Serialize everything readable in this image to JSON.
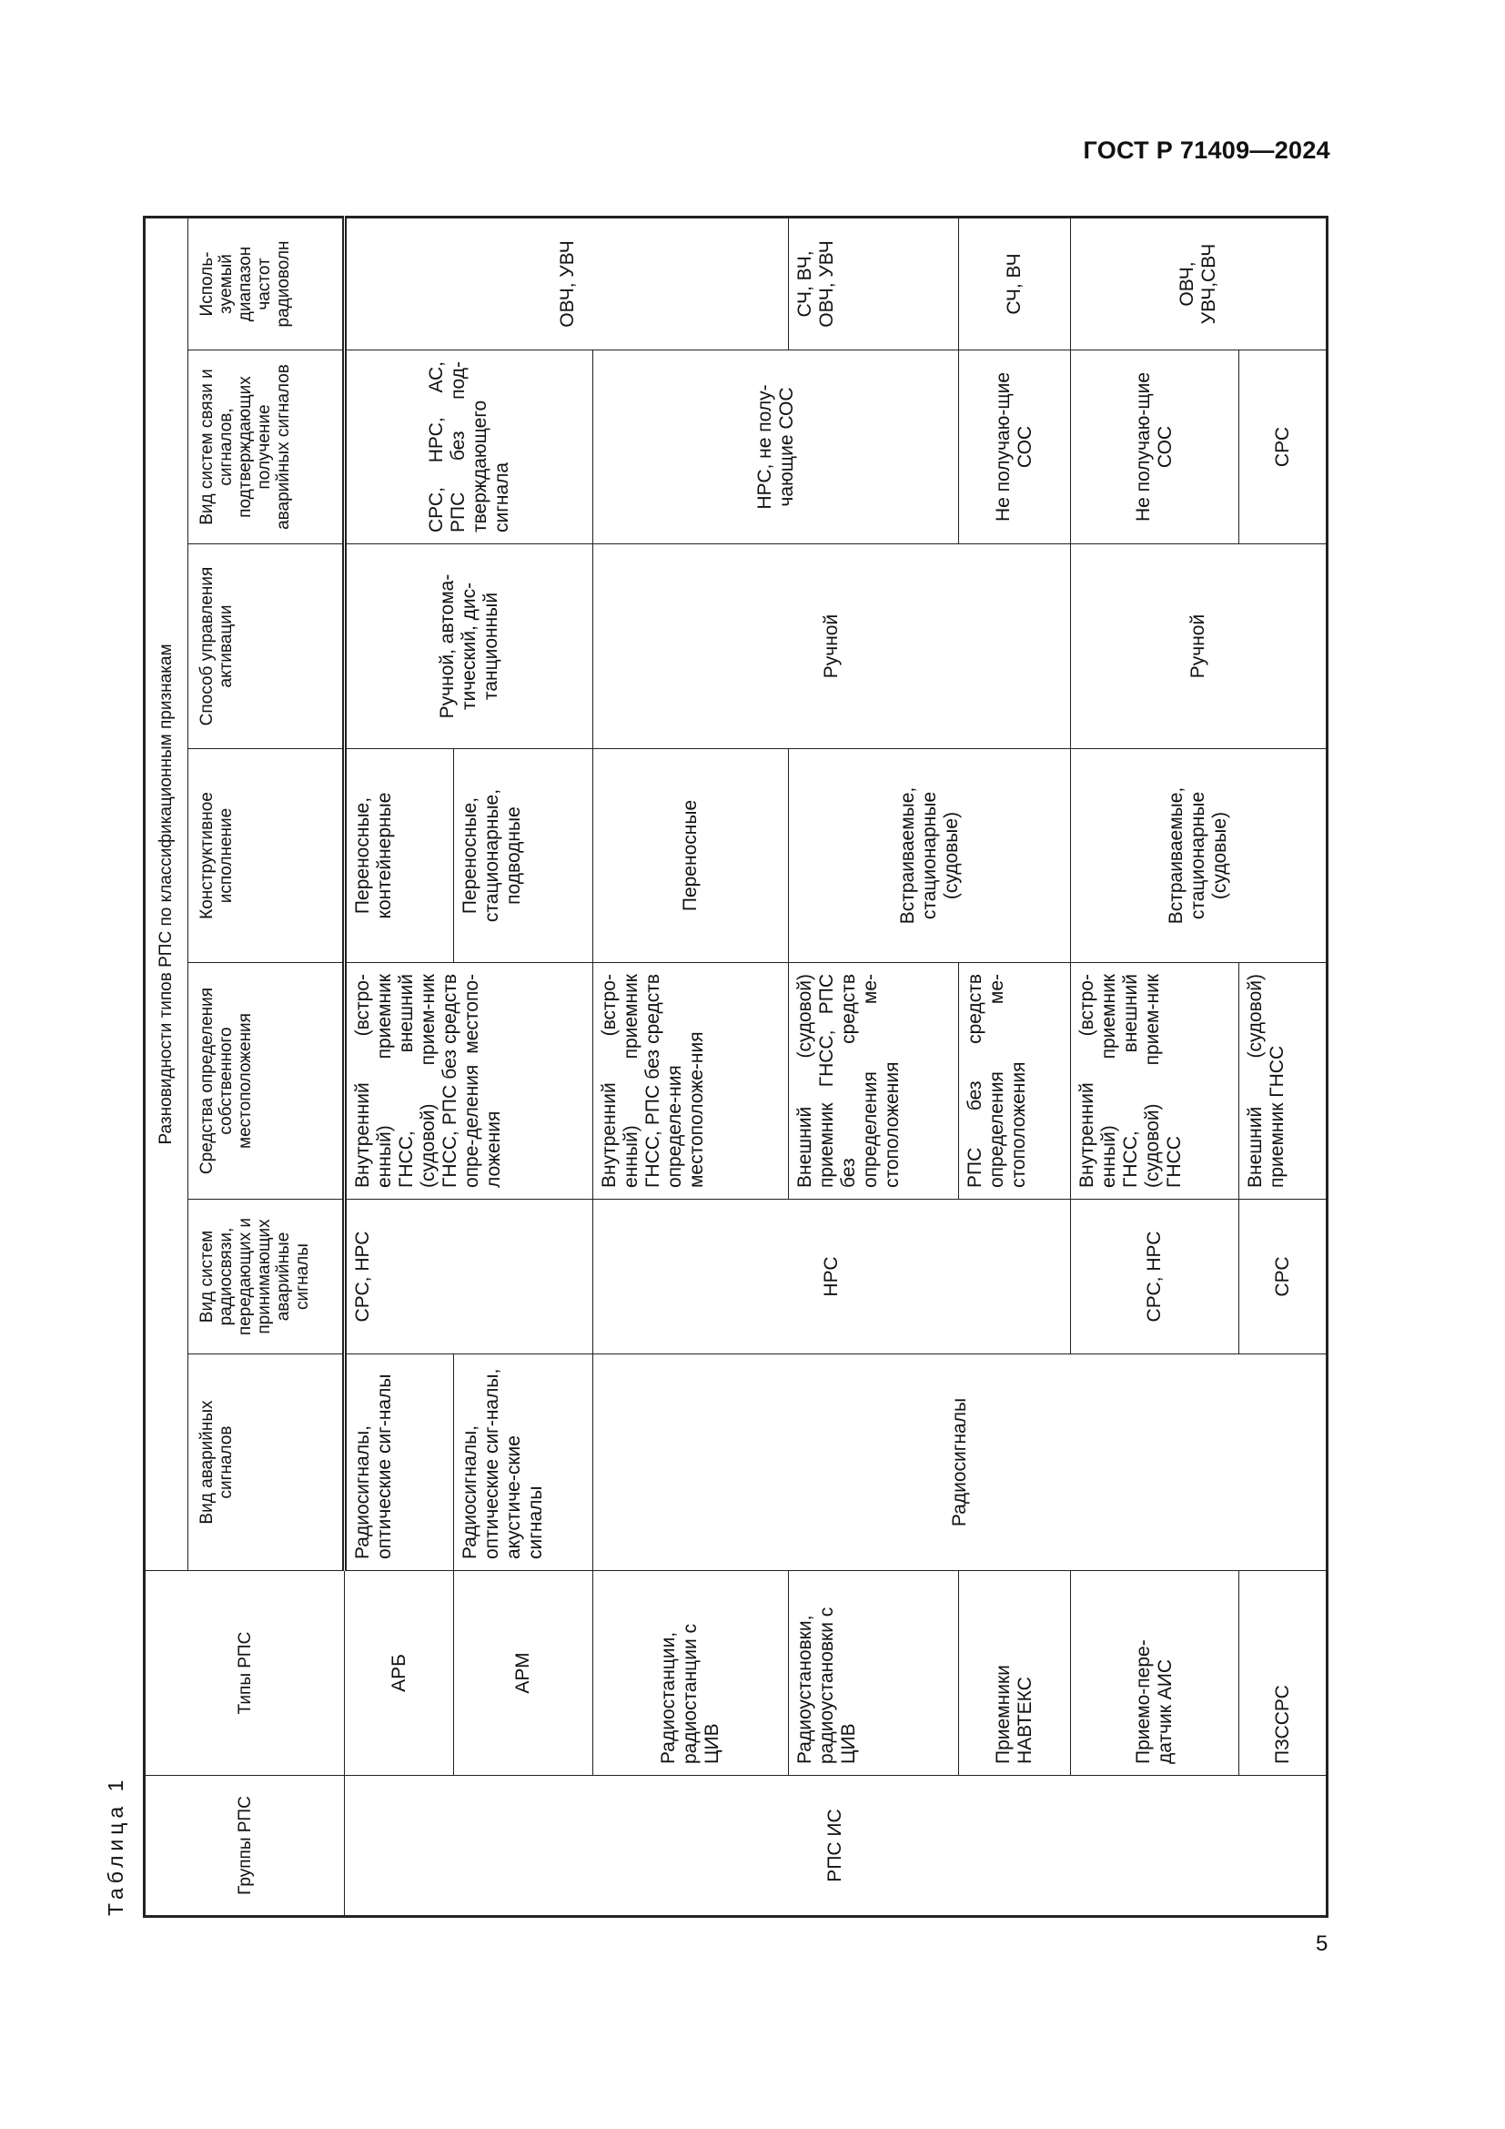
{
  "header": {
    "standard": "ГОСТ Р 71409—2024"
  },
  "caption": "Таблица 1",
  "page_number": "5",
  "table": {
    "super_header": "Разновидности типов РПС по классификационным признакам",
    "columns": [
      "Группы РПС",
      "Типы РПС",
      "Вид аварийных сигналов",
      "Вид систем радиосвязи, передающих и принимающих аварийные сигналы",
      "Средства определения собственного местоположения",
      "Конструктивное исполнение",
      "Способ управления активации",
      "Вид систем связи и сигналов, подтверждающих получение аварийных сигналов",
      "Исполь-зуемый диапазон частот радиоволн"
    ],
    "group": "РПС ИС",
    "types": [
      "АРБ",
      "АРМ",
      "Радиостанции, радиостанции с ЦИВ",
      "Радиоустановки, радиоустановки с ЦИВ",
      "Приемники НАВТЕКС",
      "Приемо-пере-датчик АИС",
      "ПЗССРС"
    ],
    "signals": [
      "Радиосигналы, оптические сиг-налы",
      "Радиосигналы, оптические сиг-налы, акустиче-ские сигналы",
      "Радиосигналы"
    ],
    "radio_systems": [
      "СРС, НРС",
      "НРС",
      "СРС, НРС",
      "СРС"
    ],
    "positioning": [
      "Внутренний (встро-енный) приемник ГНСС, внешний (судовой) прием-ник ГНСС, РПС без средств опре-деления местопо-ложения",
      "Внутренний (встро-енный) приемник ГНСС, РПС без средств определе-ния местоположе-ния",
      "Внешний (судовой) приемник ГНСС, РПС без средств определения ме-стоположения",
      "РПС без средств определения ме-стоположения",
      "Внутренний (встро-енный) приемник ГНСС, внешний (судовой) прием-ник ГНСС",
      "Внешний (судовой) приемник ГНСС"
    ],
    "construction": [
      "Переносные, контейнерные",
      "Переносные, стационарные, подводные",
      "Переносные",
      "Встраиваемые, стационарные (судовые)",
      "Встраиваемые, стационарные (судовые)"
    ],
    "activation": [
      "Ручной, автома-тический, дис-танционный",
      "Ручной",
      "Ручной"
    ],
    "confirmation": [
      "СРС, НРС, АС, РПС без под-тверждающего сигнала",
      "НРС, не полу-чающие СОС",
      "Не получаю-щие СОС",
      "Не получаю-щие СОС",
      "СРС"
    ],
    "bands": [
      "ОВЧ, УВЧ",
      "СЧ, ВЧ, ОВЧ, УВЧ",
      "СЧ, ВЧ",
      "ОВЧ, УВЧ,СВЧ"
    ]
  }
}
